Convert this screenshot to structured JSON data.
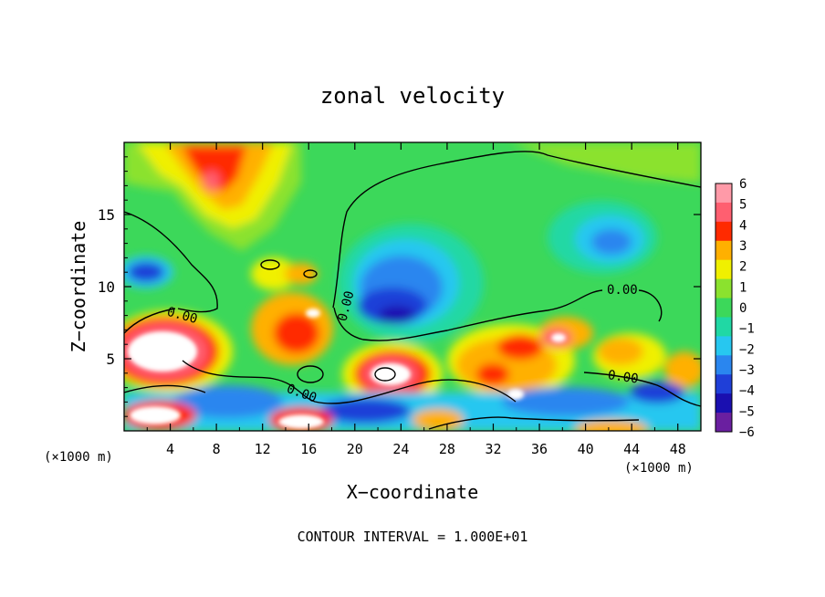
{
  "chart_data": {
    "type": "heatmap",
    "title": "zonal velocity",
    "xlabel": "X−coordinate",
    "ylabel": "Z−coordinate",
    "x_unit_note": "(×1000 m)",
    "z_unit_note": "(×1000 m)",
    "footer": "CONTOUR INTERVAL = 1.000E+01",
    "xlim": [
      0,
      50
    ],
    "ylim": [
      0,
      20
    ],
    "x_ticks": [
      "4",
      "8",
      "12",
      "16",
      "20",
      "24",
      "28",
      "32",
      "36",
      "40",
      "44",
      "48"
    ],
    "y_ticks": [
      "5",
      "10",
      "15"
    ],
    "colorbar": {
      "range": [
        -6,
        6
      ],
      "ticks": [
        "6",
        "5",
        "4",
        "3",
        "2",
        "1",
        "0",
        "−1",
        "−2",
        "−3",
        "−4",
        "−5",
        "−6"
      ]
    },
    "contour_labels": [
      "0.00",
      "0.00",
      "0.00",
      "0.00",
      "0.00"
    ],
    "colors": {
      "neg6": "#6a1fa0",
      "neg5": "#1a0fb0",
      "neg4": "#1f3fd8",
      "neg3": "#2a86ef",
      "neg2": "#27c7f0",
      "neg1": "#20d8a4",
      "zero": "#3cd85a",
      "pos1": "#8be22e",
      "pos2": "#f0f000",
      "pos3": "#ffb000",
      "pos4": "#ff2a00",
      "pos5": "#ff5f70",
      "pos6": "#ff9aa8"
    }
  }
}
